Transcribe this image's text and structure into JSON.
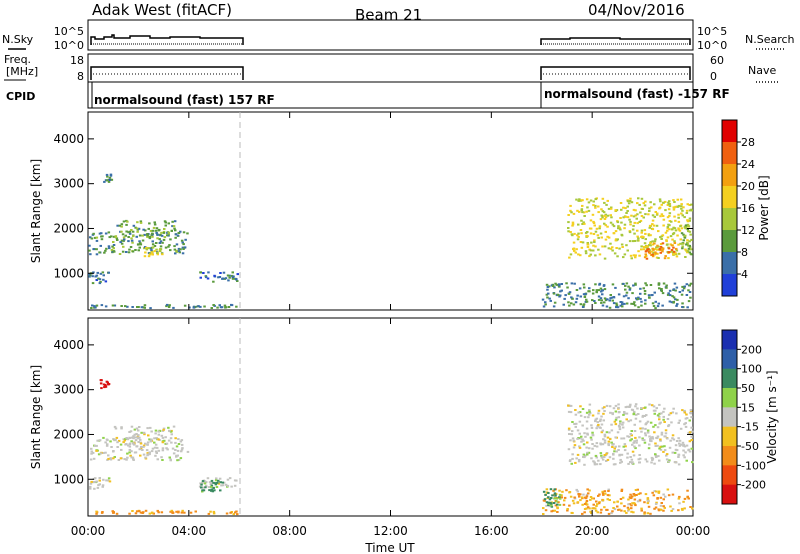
{
  "header": {
    "station": "Adak West (fitACF)",
    "beam": "Beam 21",
    "date": "04/Nov/2016"
  },
  "strip_labels": {
    "nsky": "N.Sky",
    "nsky_ticks": [
      "10^5",
      "10^0"
    ],
    "nsearch": "N.Search",
    "freq_line1": "Freq.",
    "freq_line2": "[MHz]",
    "freq_ticks": [
      "18",
      "8"
    ],
    "nave_ticks": [
      "60",
      "0"
    ],
    "nave": "Nave",
    "cpid": "CPID",
    "cpid_left": "normalsound (fast) 157 RF",
    "cpid_right": "normalsound (fast) -157 RF"
  },
  "axes": {
    "ylabel": "Slant Range [km]",
    "xlabel": "Time UT",
    "yticks": [
      "4000",
      "3000",
      "2000",
      "1000"
    ],
    "xticks": [
      "00:00",
      "04:00",
      "08:00",
      "12:00",
      "16:00",
      "20:00",
      "00:00"
    ]
  },
  "colorbars": {
    "power": {
      "label": "Power [dB]",
      "ticks": [
        "28",
        "24",
        "20",
        "16",
        "12",
        "8",
        "4"
      ],
      "colors": [
        "#e00000",
        "#f06010",
        "#f3a010",
        "#f4d020",
        "#a8c83a",
        "#5a9a3c",
        "#3a6fa8",
        "#2040d8"
      ]
    },
    "velocity": {
      "label": "Velocity [m s⁻¹]",
      "ticks": [
        "200",
        "100",
        "50",
        "15",
        "-15",
        "-50",
        "-100",
        "-200"
      ],
      "colors": [
        "#1a2fb0",
        "#2e5fa8",
        "#3a8a60",
        "#8fd24a",
        "#c4c4c0",
        "#f2c020",
        "#f28c1a",
        "#ee4a10",
        "#d81010"
      ]
    }
  },
  "chart_data": [
    {
      "type": "heatmap",
      "title": "Power",
      "xlabel": "Time UT",
      "ylabel": "Slant Range [km]",
      "xlim_hours": [
        0,
        24
      ],
      "ylim": [
        180,
        4600
      ],
      "colorbar_label": "Power [dB]",
      "colorbar_ticks": [
        4,
        8,
        12,
        16,
        20,
        24,
        28
      ],
      "regions": [
        {
          "t": [
            0.6,
            1.0
          ],
          "r": [
            3000,
            3250
          ],
          "level": 5
        },
        {
          "t": [
            0.0,
            4.0
          ],
          "r": [
            1400,
            1950
          ],
          "level": 7
        },
        {
          "t": [
            1.0,
            3.5
          ],
          "r": [
            1750,
            2200
          ],
          "level": 9
        },
        {
          "t": [
            2.2,
            3.0
          ],
          "r": [
            1350,
            1600
          ],
          "level": 14
        },
        {
          "t": [
            0.0,
            0.9
          ],
          "r": [
            750,
            1050
          ],
          "level": 5
        },
        {
          "t": [
            4.4,
            6.0
          ],
          "r": [
            780,
            1050
          ],
          "level": 5
        },
        {
          "t": [
            0.0,
            6.0
          ],
          "r": [
            200,
            320
          ],
          "level": 6
        },
        {
          "t": [
            19.0,
            24.0
          ],
          "r": [
            1300,
            2700
          ],
          "level": 14
        },
        {
          "t": [
            22.0,
            23.4
          ],
          "r": [
            1300,
            1700
          ],
          "level": 22
        },
        {
          "t": [
            23.5,
            24.0
          ],
          "r": [
            1400,
            2100
          ],
          "level": 10
        },
        {
          "t": [
            18.0,
            24.0
          ],
          "r": [
            200,
            800
          ],
          "level": 6
        }
      ]
    },
    {
      "type": "heatmap",
      "title": "Velocity",
      "xlabel": "Time UT",
      "ylabel": "Slant Range [km]",
      "xlim_hours": [
        0,
        24
      ],
      "ylim": [
        180,
        4600
      ],
      "colorbar_label": "Velocity [m s⁻¹]",
      "colorbar_ticks": [
        200,
        100,
        50,
        15,
        -15,
        -50,
        -100,
        -200
      ],
      "regions": [
        {
          "t": [
            0.4,
            0.9
          ],
          "r": [
            3000,
            3250
          ],
          "velocity": -180
        },
        {
          "t": [
            0.0,
            4.0
          ],
          "r": [
            1400,
            1950
          ],
          "velocity": 0
        },
        {
          "t": [
            1.0,
            3.5
          ],
          "r": [
            1750,
            2200
          ],
          "velocity": 0
        },
        {
          "t": [
            0.0,
            0.9
          ],
          "r": [
            750,
            1050
          ],
          "velocity": 0
        },
        {
          "t": [
            4.4,
            6.0
          ],
          "r": [
            780,
            1050
          ],
          "velocity": 0
        },
        {
          "t": [
            4.4,
            5.4
          ],
          "r": [
            700,
            1000
          ],
          "velocity": 40
        },
        {
          "t": [
            0.0,
            6.0
          ],
          "r": [
            200,
            320
          ],
          "velocity": -40
        },
        {
          "t": [
            19.0,
            24.0
          ],
          "r": [
            1300,
            2700
          ],
          "velocity": 0
        },
        {
          "t": [
            18.0,
            24.0
          ],
          "r": [
            200,
            800
          ],
          "velocity": -30
        },
        {
          "t": [
            18.0,
            18.8
          ],
          "r": [
            350,
            800
          ],
          "velocity": 40
        }
      ]
    }
  ]
}
